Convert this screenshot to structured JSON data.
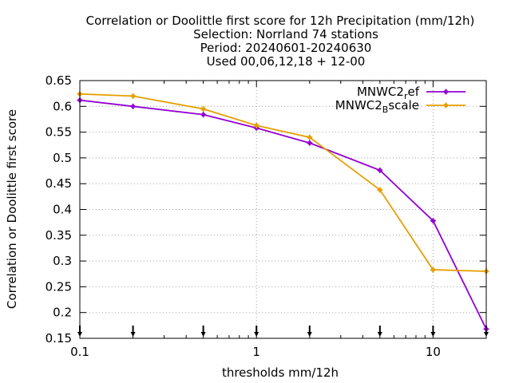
{
  "chart_data": {
    "type": "line",
    "title_lines": [
      "Correlation or Doolittle first score  for 12h Precipitation (mm/12h)",
      "Selection: Norrland     74 stations",
      "Period: 20240601-20240630",
      "Used 00,06,12,18 + 12-00"
    ],
    "xlabel": "thresholds mm/12h",
    "ylabel": "Correlation or Doolittle first score",
    "x_scale": "log",
    "xlim": [
      0.1,
      20
    ],
    "ylim": [
      0.15,
      0.65
    ],
    "x_ticks": [
      0.1,
      1,
      10
    ],
    "x_tick_labels": [
      "0.1",
      "1",
      "10"
    ],
    "y_ticks": [
      0.15,
      0.2,
      0.25,
      0.3,
      0.35,
      0.4,
      0.45,
      0.5,
      0.55,
      0.6,
      0.65
    ],
    "y_tick_labels": [
      "0.15",
      "0.2",
      "0.25",
      "0.3",
      "0.35",
      "0.4",
      "0.45",
      "0.5",
      "0.55",
      "0.6",
      "0.65"
    ],
    "grid": true,
    "legend_position": "top-right",
    "x": [
      0.1,
      0.2,
      0.5,
      1,
      2,
      5,
      10,
      20
    ],
    "series": [
      {
        "name": "MNWC2_ref",
        "legend_base": "MNWC2",
        "legend_sub": "r",
        "legend_rest": "ef",
        "color": "#9400d3",
        "values": [
          0.612,
          0.6,
          0.584,
          0.558,
          0.529,
          0.476,
          0.378,
          0.168
        ]
      },
      {
        "name": "MNWC2_Bscale",
        "legend_base": "MNWC2",
        "legend_sub": "B",
        "legend_rest": "scale",
        "color": "#e69f00",
        "values": [
          0.624,
          0.62,
          0.595,
          0.563,
          0.54,
          0.438,
          0.283,
          0.28
        ]
      }
    ],
    "arrow_markers_x": [
      0.1,
      0.2,
      0.5,
      1,
      2,
      5,
      10,
      20
    ]
  }
}
